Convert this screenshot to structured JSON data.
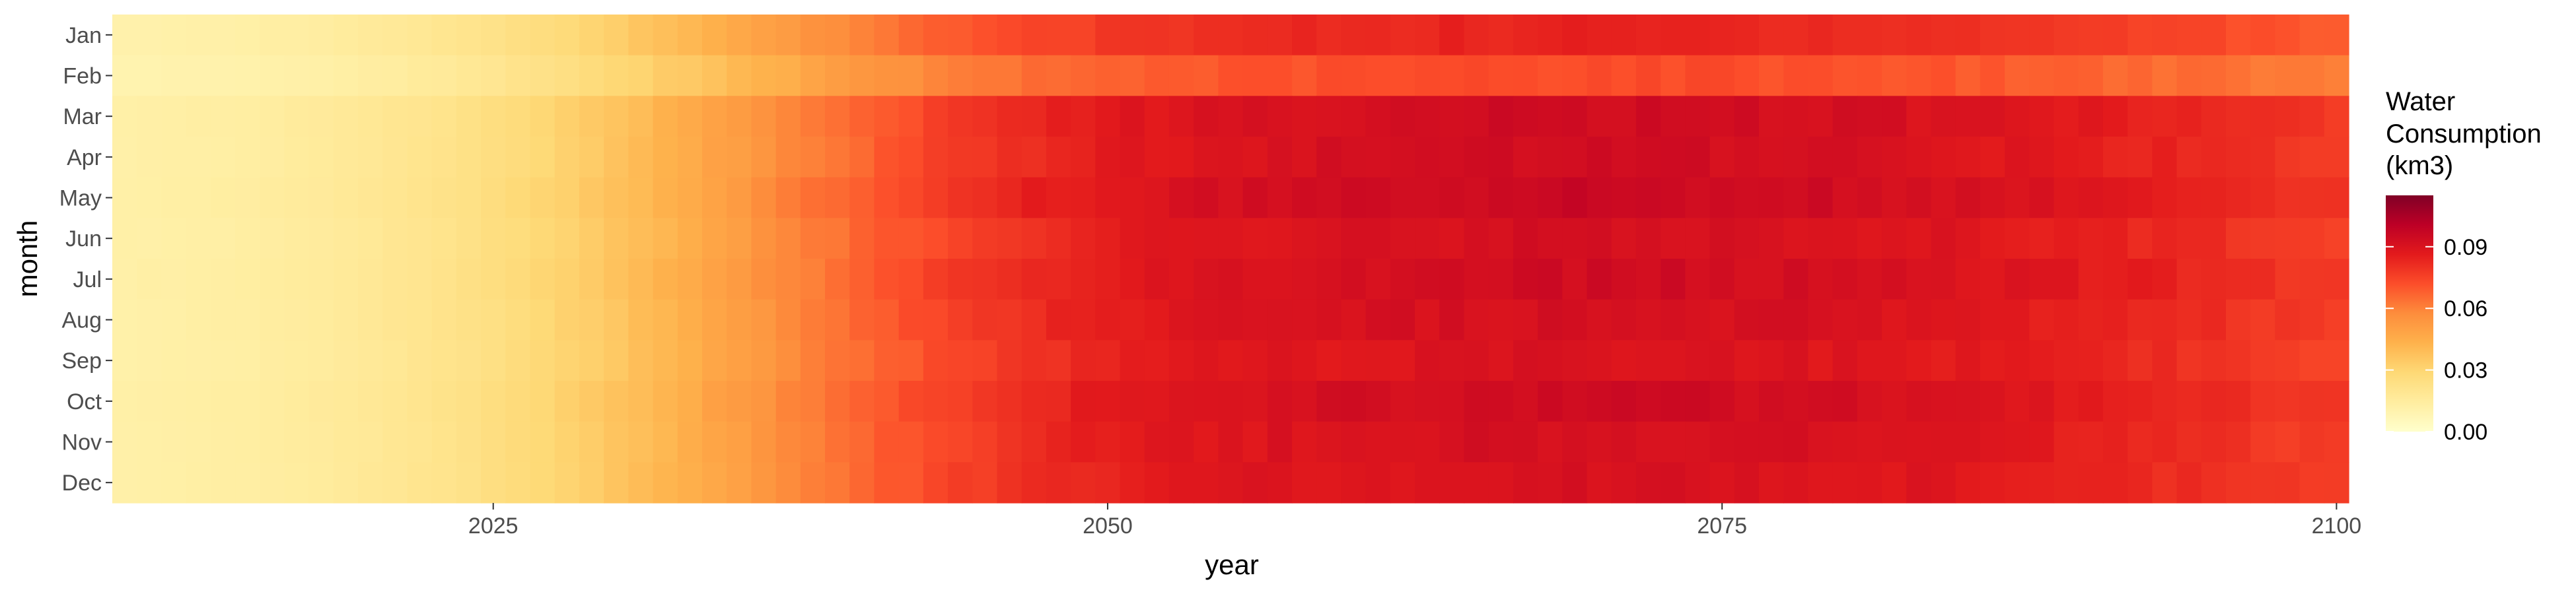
{
  "chart_data": {
    "type": "heatmap",
    "xlabel": "year",
    "ylabel": "month",
    "x_range": [
      2010,
      2100
    ],
    "x_ticks": [
      2025,
      2050,
      2075,
      2100
    ],
    "months": [
      "Jan",
      "Feb",
      "Mar",
      "Apr",
      "May",
      "Jun",
      "Jul",
      "Aug",
      "Sep",
      "Oct",
      "Nov",
      "Dec"
    ],
    "legend": {
      "title_lines": [
        "Water",
        "Consumption",
        "(km3)"
      ],
      "range": [
        0,
        0.115
      ],
      "ticks": [
        "0.00",
        "0.03",
        "0.06",
        "0.09"
      ],
      "tick_values": [
        0.0,
        0.03,
        0.06,
        0.09
      ],
      "colors": [
        "#ffffcc",
        "#ffeda0",
        "#fed976",
        "#feb24c",
        "#fd8d3c",
        "#fc4e2a",
        "#e31a1c",
        "#bd0026",
        "#800026"
      ]
    },
    "value_model": {
      "start_value": 0.01,
      "peak_value": 0.091,
      "peak_year": 2070,
      "end_value": 0.075,
      "rise_center_year": 2035,
      "rise_width_years": 6.5,
      "month_factors": [
        0.92,
        0.8,
        1.03,
        1.02,
        1.05,
        1.01,
        1.03,
        1.01,
        0.99,
        1.03,
        1.01,
        1.0
      ]
    }
  }
}
